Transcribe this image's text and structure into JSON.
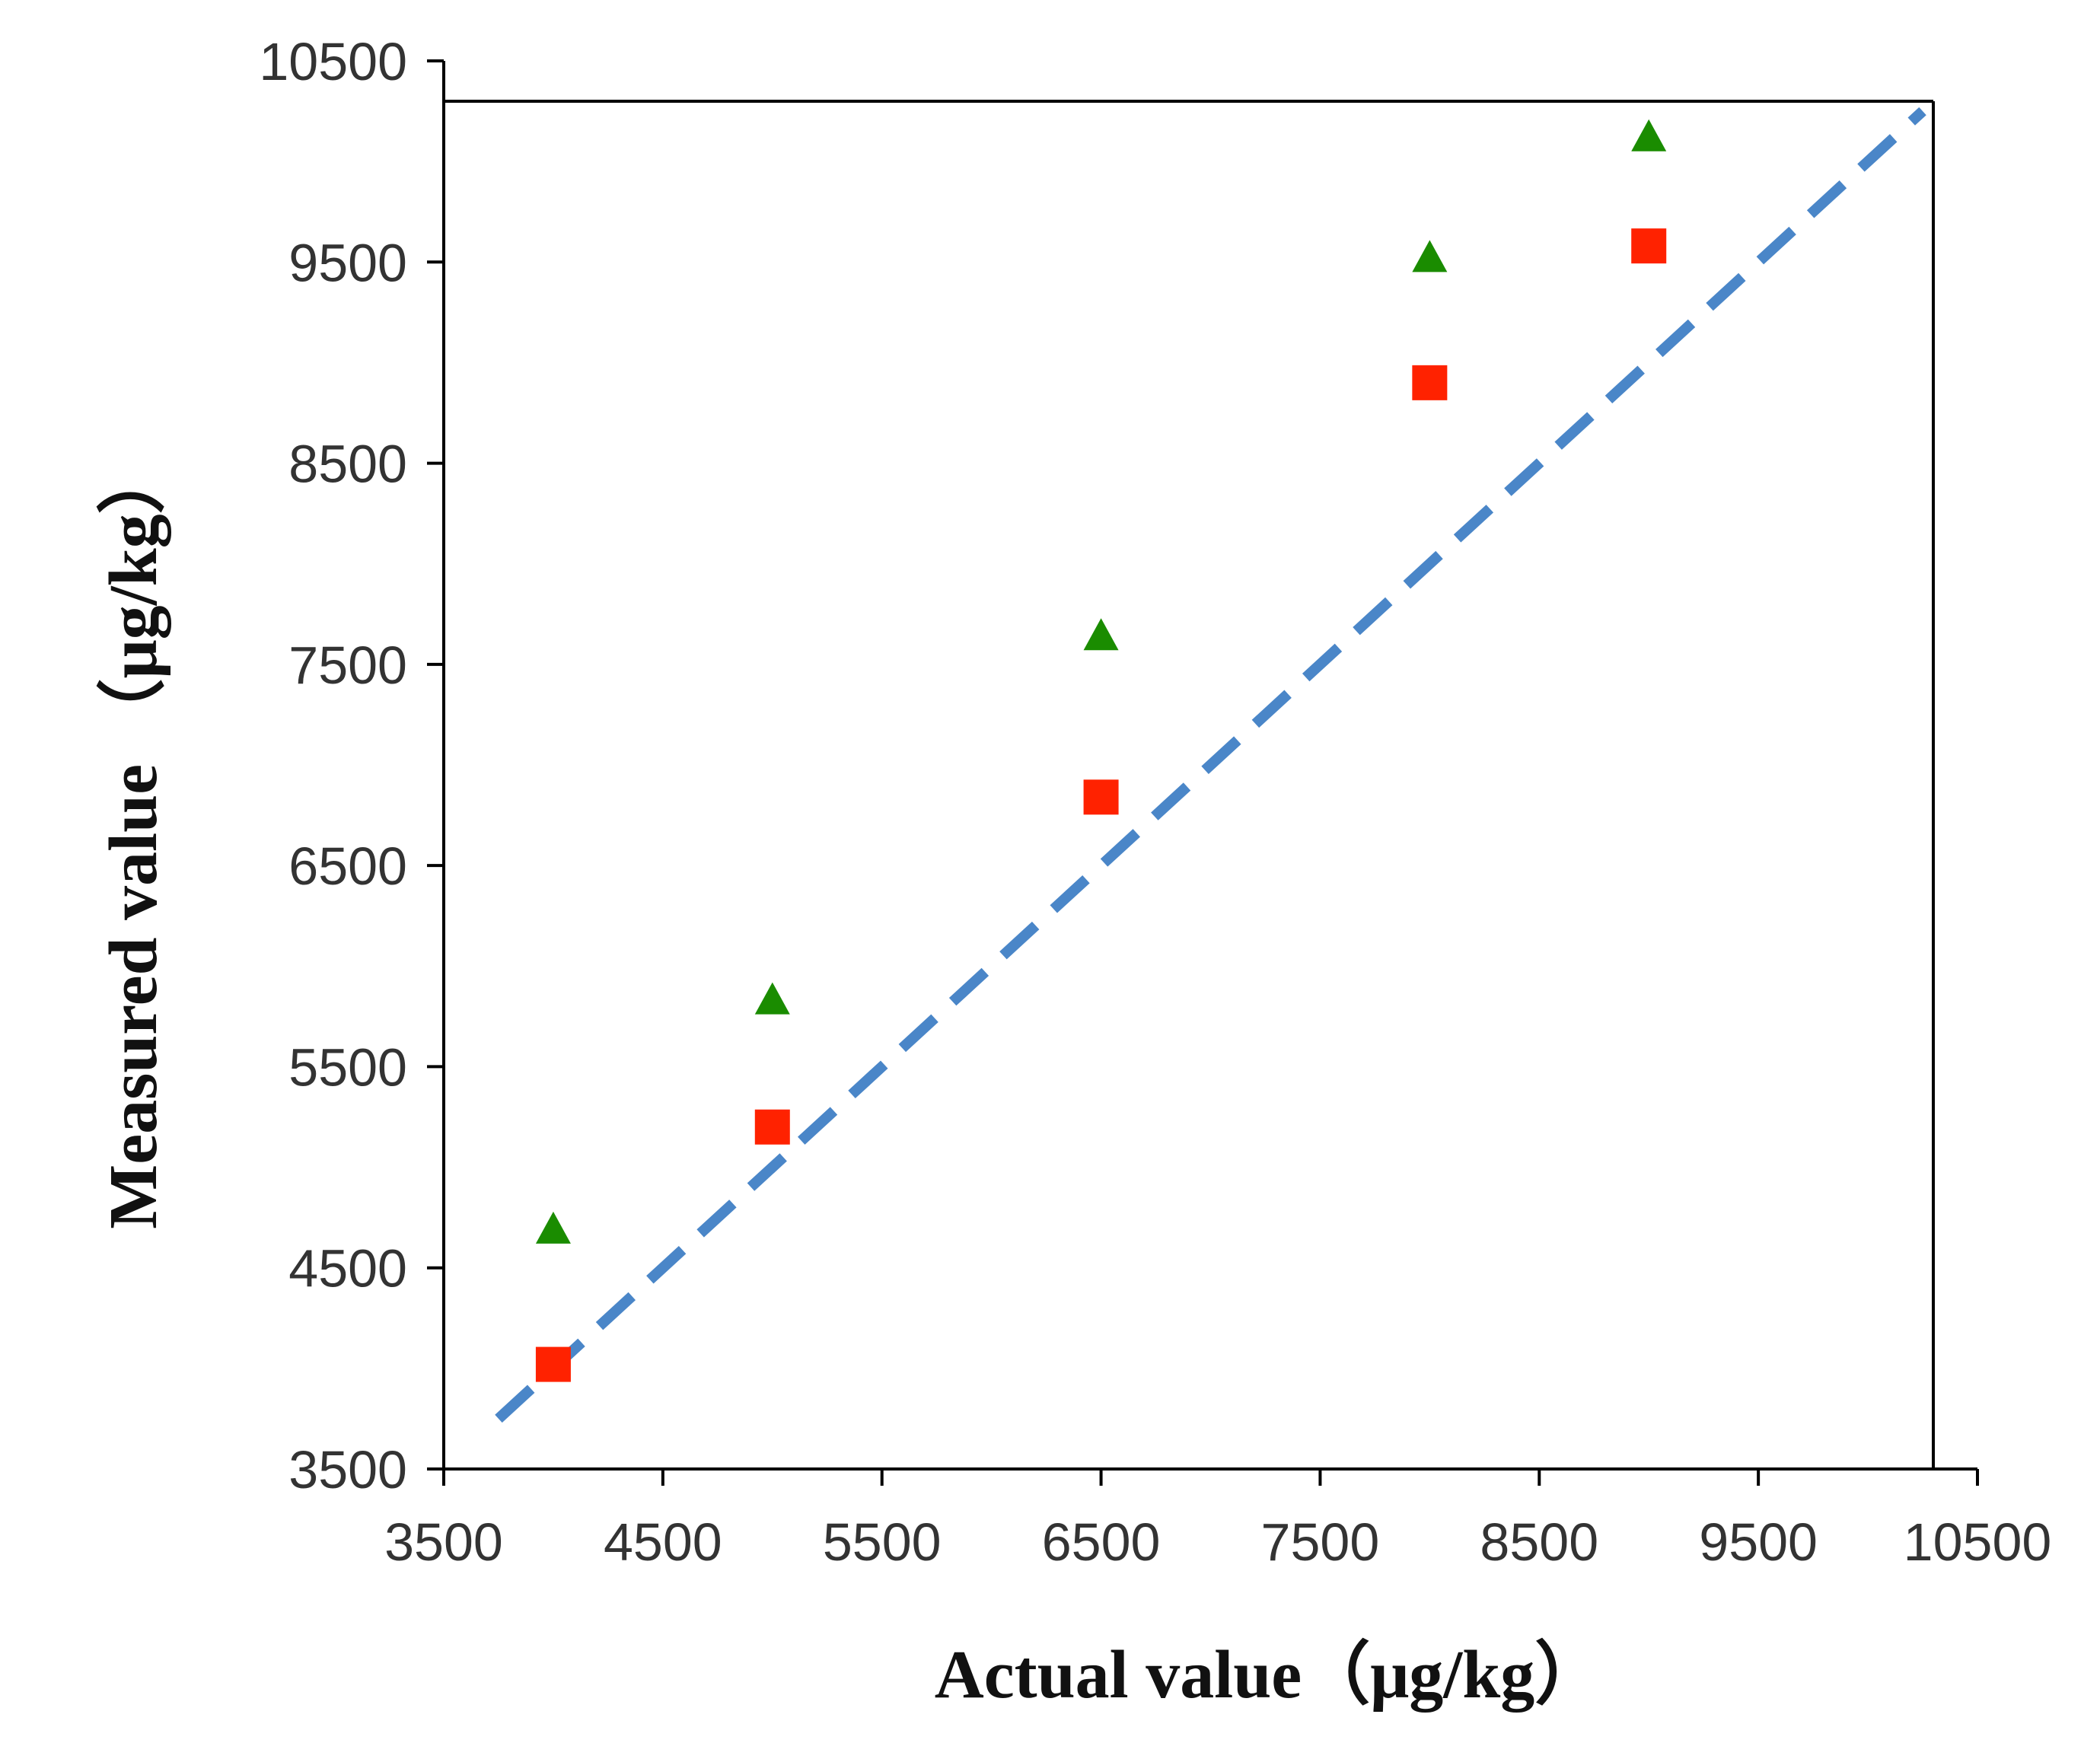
{
  "chart_data": {
    "type": "scatter",
    "title": "",
    "xlabel": "Actual value（μg/kg）",
    "ylabel": "Measured value （μg/kg）",
    "xlim": [
      3500,
      10500
    ],
    "ylim": [
      3500,
      10500
    ],
    "x_ticks": [
      "3500",
      "4500",
      "5500",
      "6500",
      "7500",
      "8500",
      "9500",
      "10500"
    ],
    "y_ticks": [
      "3500",
      "4500",
      "5500",
      "6500",
      "7500",
      "8500",
      "9500",
      "10500"
    ],
    "series": [
      {
        "name": "red squares",
        "marker": "square",
        "color": "#ff2200",
        "x": [
          4000,
          5000,
          6500,
          8000,
          9000
        ],
        "y": [
          4020,
          5200,
          6840,
          8900,
          9580
        ]
      },
      {
        "name": "green triangles",
        "marker": "triangle",
        "color": "#1a8c00",
        "x": [
          4000,
          5000,
          6500,
          8000,
          9000
        ],
        "y": [
          4700,
          5840,
          7650,
          9530,
          10130
        ]
      },
      {
        "name": "reference line y = x",
        "marker": "dashed-line",
        "color": "#4a86c8",
        "x": [
          3750,
          10250
        ],
        "y": [
          3750,
          10250
        ]
      }
    ]
  }
}
